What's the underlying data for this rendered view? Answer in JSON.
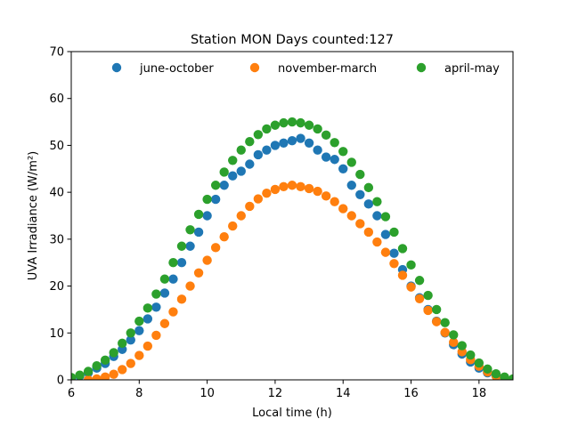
{
  "chart_data": {
    "type": "scatter",
    "title": "Station MON Days counted:127",
    "xlabel": "Local time (h)",
    "ylabel": "UVA Irradiance (W/m²)",
    "xlim": [
      6,
      19
    ],
    "ylim": [
      0,
      70
    ],
    "xticks": [
      6,
      8,
      10,
      12,
      14,
      16,
      18
    ],
    "yticks": [
      0,
      10,
      20,
      30,
      40,
      50,
      60,
      70
    ],
    "grid": false,
    "legend": "top, horizontal",
    "series": [
      {
        "name": "june-october",
        "color": "#1f77b4",
        "x": [
          6.0,
          6.25,
          6.5,
          6.75,
          7.0,
          7.25,
          7.5,
          7.75,
          8.0,
          8.25,
          8.5,
          8.75,
          9.0,
          9.25,
          9.5,
          9.75,
          10.0,
          10.25,
          10.5,
          10.75,
          11.0,
          11.25,
          11.5,
          11.75,
          12.0,
          12.25,
          12.5,
          12.75,
          13.0,
          13.25,
          13.5,
          13.75,
          14.0,
          14.25,
          14.5,
          14.75,
          15.0,
          15.25,
          15.5,
          15.75,
          16.0,
          16.25,
          16.5,
          16.75,
          17.0,
          17.25,
          17.5,
          17.75,
          18.0,
          18.25,
          18.5,
          18.75,
          19.0
        ],
        "y": [
          0.3,
          0.8,
          1.5,
          2.5,
          3.5,
          5.0,
          6.5,
          8.5,
          10.5,
          13.0,
          15.5,
          18.5,
          21.5,
          25.0,
          28.5,
          31.5,
          35.0,
          38.5,
          41.5,
          43.5,
          44.5,
          46.0,
          48.0,
          49.0,
          50.0,
          50.5,
          51.0,
          51.5,
          50.5,
          49.0,
          47.5,
          47.0,
          45.0,
          41.5,
          39.5,
          37.5,
          35.0,
          31.0,
          27.0,
          23.5,
          20.0,
          17.5,
          15.0,
          12.5,
          10.0,
          7.5,
          5.5,
          3.8,
          2.5,
          1.5,
          0.8,
          0.3,
          0.1
        ]
      },
      {
        "name": "november-march",
        "color": "#ff7f0e",
        "x": [
          6.5,
          6.75,
          7.0,
          7.25,
          7.5,
          7.75,
          8.0,
          8.25,
          8.5,
          8.75,
          9.0,
          9.25,
          9.5,
          9.75,
          10.0,
          10.25,
          10.5,
          10.75,
          11.0,
          11.25,
          11.5,
          11.75,
          12.0,
          12.25,
          12.5,
          12.75,
          13.0,
          13.25,
          13.5,
          13.75,
          14.0,
          14.25,
          14.5,
          14.75,
          15.0,
          15.25,
          15.5,
          15.75,
          16.0,
          16.25,
          16.5,
          16.75,
          17.0,
          17.25,
          17.5,
          17.75,
          18.0,
          18.25,
          18.5,
          18.75
        ],
        "y": [
          0.0,
          0.2,
          0.6,
          1.2,
          2.2,
          3.5,
          5.2,
          7.2,
          9.5,
          12.0,
          14.5,
          17.2,
          20.0,
          22.8,
          25.5,
          28.2,
          30.5,
          32.8,
          35.0,
          37.0,
          38.6,
          39.8,
          40.6,
          41.2,
          41.5,
          41.2,
          40.8,
          40.2,
          39.2,
          38.0,
          36.5,
          35.0,
          33.3,
          31.5,
          29.4,
          27.2,
          24.8,
          22.3,
          19.8,
          17.3,
          14.8,
          12.4,
          10.1,
          8.0,
          6.0,
          4.3,
          2.9,
          1.7,
          0.8,
          0.3
        ]
      },
      {
        "name": "april-may",
        "color": "#2ca02c",
        "x": [
          6.0,
          6.25,
          6.5,
          6.75,
          7.0,
          7.25,
          7.5,
          7.75,
          8.0,
          8.25,
          8.5,
          8.75,
          9.0,
          9.25,
          9.5,
          9.75,
          10.0,
          10.25,
          10.5,
          10.75,
          11.0,
          11.25,
          11.5,
          11.75,
          12.0,
          12.25,
          12.5,
          12.75,
          13.0,
          13.25,
          13.5,
          13.75,
          14.0,
          14.25,
          14.5,
          14.75,
          15.0,
          15.25,
          15.5,
          15.75,
          16.0,
          16.25,
          16.5,
          16.75,
          17.0,
          17.25,
          17.5,
          17.75,
          18.0,
          18.25,
          18.5,
          18.75,
          19.0
        ],
        "y": [
          0.5,
          1.0,
          1.8,
          3.0,
          4.2,
          5.8,
          7.8,
          10.0,
          12.5,
          15.3,
          18.3,
          21.5,
          25.0,
          28.5,
          32.0,
          35.3,
          38.5,
          41.5,
          44.3,
          46.8,
          49.0,
          50.8,
          52.3,
          53.5,
          54.3,
          54.8,
          55.0,
          54.8,
          54.3,
          53.5,
          52.2,
          50.6,
          48.7,
          46.4,
          43.8,
          41.0,
          38.0,
          34.8,
          31.5,
          28.0,
          24.5,
          21.2,
          18.0,
          15.0,
          12.2,
          9.6,
          7.3,
          5.3,
          3.6,
          2.3,
          1.3,
          0.6,
          0.2
        ]
      }
    ]
  }
}
